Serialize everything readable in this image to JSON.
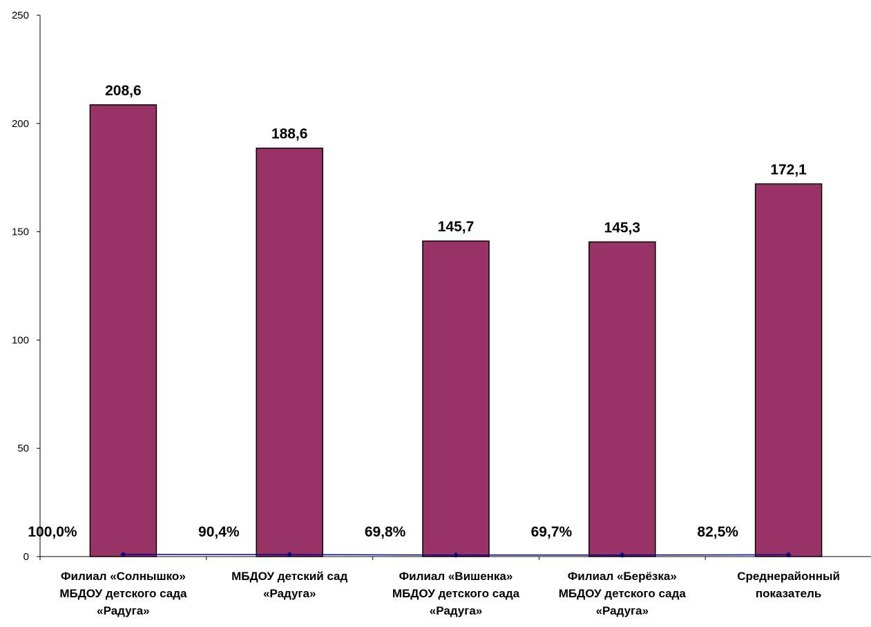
{
  "chart_data": {
    "type": "bar",
    "categories": [
      [
        "Филиал  «Солнышко»",
        "МБДОУ детского сада",
        "«Радуга»"
      ],
      [
        "МБДОУ детский сад",
        "«Радуга»"
      ],
      [
        "Филиал  «Вишенка»",
        "МБДОУ детского сада",
        "«Радуга»"
      ],
      [
        "Филиал  «Берёзка»",
        "МБДОУ детского сада",
        "«Радуга»"
      ],
      [
        "Среднерайонный",
        "показатель"
      ]
    ],
    "series": [
      {
        "type": "bar",
        "values": [
          208.6,
          188.6,
          145.7,
          145.3,
          172.1
        ],
        "labels": [
          "208,6",
          "188,6",
          "145,7",
          "145,3",
          "172,1"
        ]
      },
      {
        "type": "line",
        "values": [
          1.0,
          0.904,
          0.698,
          0.697,
          0.825
        ],
        "labels": [
          "100,0%",
          "90,4%",
          "69,8%",
          "69,7%",
          "82,5%"
        ]
      }
    ],
    "yticks": [
      0,
      50,
      100,
      150,
      200,
      250
    ],
    "ylim": [
      0,
      250
    ],
    "grid": false,
    "legend": "none",
    "colors": {
      "bar_fill": "#993366",
      "bar_stroke": "#000000",
      "line": "#000080",
      "axis": "#000000"
    }
  }
}
